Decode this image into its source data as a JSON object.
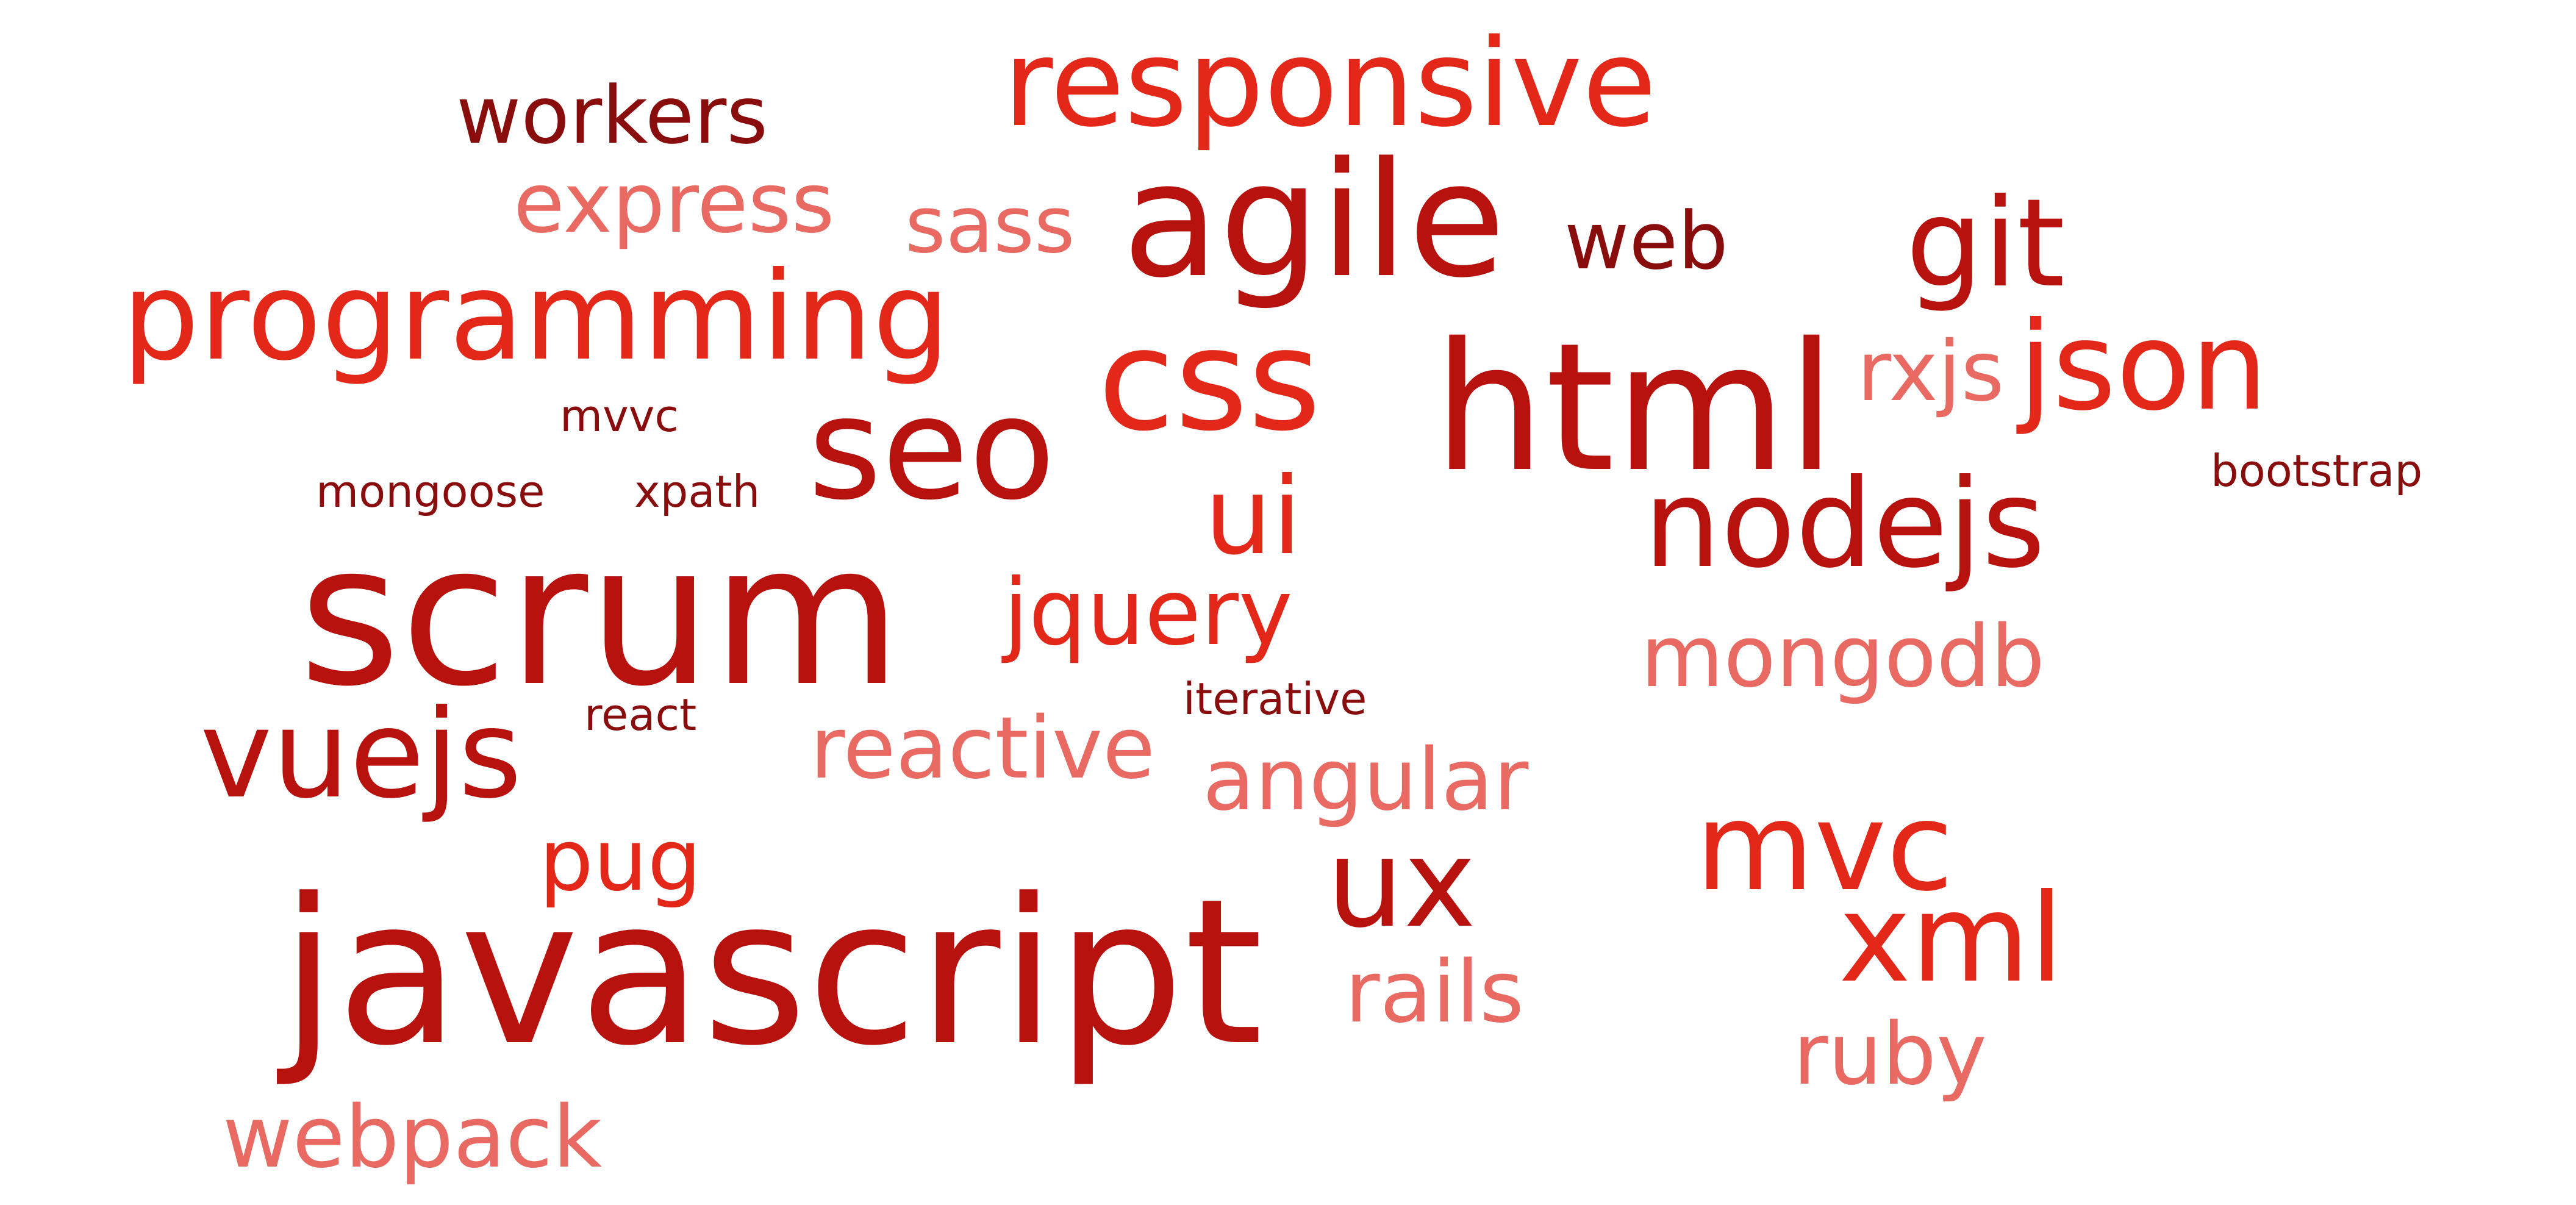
{
  "colors": {
    "background": "#ffffff",
    "dark": "#8a0d0d",
    "mid": "#b8120f",
    "bright": "#e3281a",
    "light": "#e86a62"
  },
  "words": {
    "responsive": "responsive",
    "workers": "workers",
    "express": "express",
    "sass": "sass",
    "agile": "agile",
    "web": "web",
    "git": "git",
    "programming": "programming",
    "css": "css",
    "html": "html",
    "rxjs": "rxjs",
    "json": "json",
    "mvvc": "mvvc",
    "seo": "seo",
    "bootstrap": "bootstrap",
    "mongoose": "mongoose",
    "xpath": "xpath",
    "ui": "ui",
    "nodejs": "nodejs",
    "scrum": "scrum",
    "jquery": "jquery",
    "mongodb": "mongodb",
    "iterative": "iterative",
    "react": "react",
    "vuejs": "vuejs",
    "reactive": "reactive",
    "angular": "angular",
    "mvc": "mvc",
    "pug": "pug",
    "ux": "ux",
    "javascript": "javascript",
    "xml": "xml",
    "rails": "rails",
    "ruby": "ruby",
    "webpack": "webpack"
  }
}
